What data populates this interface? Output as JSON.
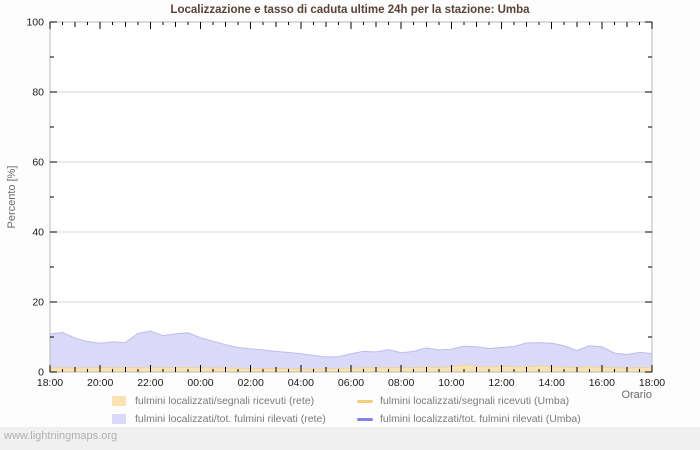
{
  "page": {
    "title": "Localizzazione e tasso di caduta ultime 24h per la stazione: Umba",
    "watermark": "www.lightningmaps.org"
  },
  "axes": {
    "y_label": "Percento  [%]",
    "x_label": "Orario"
  },
  "legend": {
    "items": [
      {
        "label": "fulmini localizzati/segnali ricevuti (rete)",
        "swatch": "area",
        "color": "#fbe3b1"
      },
      {
        "label": "fulmini localizzati/segnali ricevuti (Umba)",
        "swatch": "line",
        "color": "#f3cc7c"
      },
      {
        "label": "fulmini localizzati/tot. fulmini rilevati (rete)",
        "swatch": "area",
        "color": "#dadaf8"
      },
      {
        "label": "fulmini localizzati/tot. fulmini rilevati (Umba)",
        "swatch": "line",
        "color": "#8484e2"
      }
    ]
  },
  "chart_data": {
    "type": "area",
    "title": "Localizzazione e tasso di caduta ultime 24h per la stazione: Umba",
    "xlabel": "Orario",
    "ylabel": "Percento [%]",
    "ylim": [
      0,
      100
    ],
    "x_range_hours": 24,
    "sample_interval_minutes": 30,
    "grid": true,
    "legend_position": "below",
    "x_tick_labels": [
      "18:00",
      "20:00",
      "22:00",
      "00:00",
      "02:00",
      "04:00",
      "06:00",
      "08:00",
      "10:00",
      "12:00",
      "14:00",
      "16:00",
      "18:00"
    ],
    "y_ticks": [
      0,
      20,
      40,
      60,
      80,
      100
    ],
    "draw_order": [
      1,
      0,
      2,
      3
    ],
    "series": [
      {
        "name": "fulmini localizzati/segnali ricevuti (rete)",
        "type": "area",
        "fill": "#fbe3b1",
        "stroke": "#ecd3a2",
        "values": [
          1.2,
          1.2,
          1.1,
          1.2,
          1.3,
          1.2,
          1.2,
          1.3,
          1.2,
          1.2,
          1.3,
          1.3,
          1.2,
          1.2,
          1.1,
          1.1,
          1.0,
          1.0,
          1.0,
          1.0,
          0.9,
          0.9,
          0.9,
          1.0,
          1.1,
          1.2,
          1.2,
          1.3,
          1.2,
          1.3,
          1.4,
          1.3,
          1.5,
          2.0,
          1.6,
          1.4,
          1.7,
          1.5,
          1.4,
          1.8,
          1.5,
          1.4,
          1.3,
          1.5,
          1.4,
          1.2,
          1.1,
          1.3,
          1.2
        ]
      },
      {
        "name": "fulmini localizzati/tot. fulmini rilevati (rete)",
        "type": "area",
        "fill": "#dadaf8",
        "stroke": "#bcbcee",
        "values": [
          10.9,
          11.3,
          9.7,
          8.7,
          8.2,
          8.6,
          8.4,
          11.0,
          11.7,
          10.4,
          10.9,
          11.2,
          9.8,
          8.8,
          7.8,
          7.0,
          6.6,
          6.3,
          5.9,
          5.6,
          5.2,
          4.7,
          4.3,
          4.4,
          5.2,
          5.9,
          5.7,
          6.4,
          5.5,
          5.9,
          6.9,
          6.3,
          6.5,
          7.4,
          7.2,
          6.7,
          7.0,
          7.3,
          8.3,
          8.4,
          8.2,
          7.5,
          6.1,
          7.5,
          7.2,
          5.4,
          5.0,
          5.6,
          5.3
        ]
      },
      {
        "name": "fulmini localizzati/segnali ricevuti (Umba)",
        "type": "line",
        "stroke": "#f3cc7c",
        "values": []
      },
      {
        "name": "fulmini localizzati/tot. fulmini rilevati (Umba)",
        "type": "line",
        "stroke": "#8484e2",
        "values": []
      }
    ]
  }
}
